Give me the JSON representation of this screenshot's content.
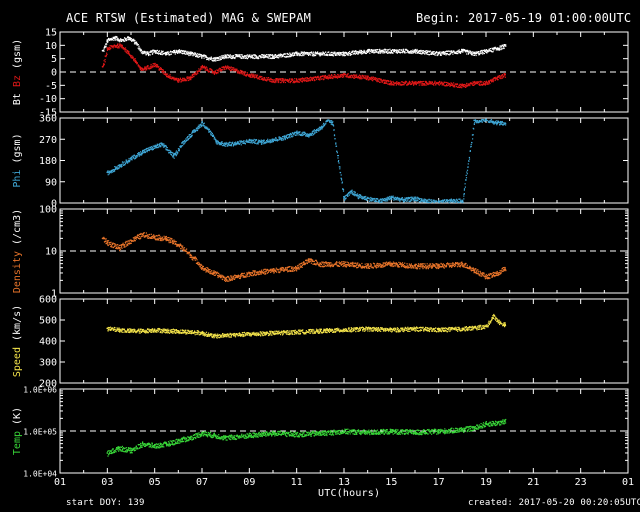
{
  "header": {
    "title": "ACE RTSW (Estimated) MAG & SWEPAM",
    "begin": "Begin: 2017-05-19 01:00:00UTC"
  },
  "footer": {
    "start_doy": "start DOY: 139",
    "created": "created: 2017-05-20 00:20:05UTC"
  },
  "colors": {
    "bt": "#ffffff",
    "bz": "#e01818",
    "phi": "#3fa7d6",
    "density": "#e8742a",
    "speed": "#f2e24a",
    "temp": "#39d739",
    "axis": "#ffffff",
    "background": "#000000"
  },
  "chart_data": [
    {
      "type": "scatter",
      "ylabel_parts": [
        {
          "text": "Bt",
          "color": "#ffffff"
        },
        {
          "text": " ",
          "color": "#ffffff"
        },
        {
          "text": "Bz",
          "color": "#e01818"
        },
        {
          "text": " (gsm)",
          "color": "#ffffff"
        }
      ],
      "yticks": [
        "15",
        "10",
        "5",
        "0",
        "-5",
        "-10",
        "-15"
      ],
      "ylim": [
        -15,
        15
      ],
      "dashed_ref": 0,
      "series": [
        {
          "name": "Bt",
          "color": "#ffffff",
          "x": [
            2.8,
            3.0,
            3.3,
            3.6,
            3.9,
            4.2,
            4.4,
            4.7,
            5.0,
            5.5,
            6.0,
            6.5,
            7.0,
            7.5,
            8.0,
            9.0,
            10.0,
            11.0,
            12.0,
            13.0,
            14.0,
            15.0,
            16.0,
            17.0,
            18.0,
            18.5,
            19.0,
            19.5,
            19.8
          ],
          "y": [
            8,
            12,
            13,
            12,
            13,
            11,
            8,
            7,
            8,
            7,
            8,
            7,
            6,
            5,
            6,
            6,
            6,
            7,
            7,
            7,
            8,
            8,
            8,
            7,
            8,
            7,
            8,
            9,
            10
          ]
        },
        {
          "name": "Bz",
          "color": "#e01818",
          "x": [
            2.8,
            3.0,
            3.3,
            3.6,
            3.9,
            4.2,
            4.4,
            4.7,
            5.0,
            5.5,
            6.0,
            6.5,
            7.0,
            7.5,
            8.0,
            9.0,
            10.0,
            11.0,
            12.0,
            13.0,
            14.0,
            15.0,
            16.0,
            17.0,
            18.0,
            18.5,
            19.0,
            19.5,
            19.8
          ],
          "y": [
            2,
            9,
            10,
            10,
            7,
            4,
            1,
            2,
            3,
            -1,
            -3,
            -2,
            2,
            0,
            2,
            -1,
            -3,
            -3,
            -2,
            -1,
            -2,
            -4,
            -4,
            -4,
            -5,
            -4,
            -4,
            -2,
            -1
          ]
        }
      ]
    },
    {
      "type": "scatter",
      "ylabel_parts": [
        {
          "text": "Phi",
          "color": "#3fa7d6"
        },
        {
          "text": " (gsm)",
          "color": "#ffffff"
        }
      ],
      "yticks": [
        "360",
        "270",
        "180",
        "90",
        "0"
      ],
      "ylim": [
        0,
        360
      ],
      "series": [
        {
          "name": "Phi",
          "color": "#3fa7d6",
          "x": [
            3.0,
            3.5,
            4.0,
            4.5,
            5.0,
            5.3,
            5.8,
            6.2,
            6.6,
            7.0,
            7.2,
            7.6,
            8.0,
            8.5,
            9.0,
            9.5,
            10.0,
            10.5,
            11.0,
            11.5,
            12.0,
            12.3,
            12.5,
            13.0,
            13.3,
            13.6,
            14.0,
            14.5,
            15.0,
            15.5,
            16.0,
            16.5,
            17.0,
            17.5,
            18.0,
            18.5,
            19.0,
            19.3,
            19.6,
            19.8
          ],
          "y": [
            130,
            160,
            190,
            220,
            240,
            250,
            200,
            260,
            300,
            340,
            320,
            260,
            250,
            255,
            265,
            260,
            270,
            280,
            300,
            290,
            320,
            350,
            340,
            20,
            50,
            30,
            20,
            10,
            25,
            15,
            20,
            10,
            5,
            10,
            10,
            350,
            355,
            345,
            340,
            338
          ]
        }
      ]
    },
    {
      "type": "scatter",
      "ylabel_parts": [
        {
          "text": "Density",
          "color": "#e8742a"
        },
        {
          "text": " (/cm3)",
          "color": "#ffffff"
        }
      ],
      "yscale": "log",
      "yticks": [
        "100",
        "10",
        "1"
      ],
      "ylim": [
        1,
        100
      ],
      "dashed_ref": 10,
      "series": [
        {
          "name": "Density",
          "color": "#e8742a",
          "x": [
            2.8,
            3.0,
            3.5,
            4.0,
            4.5,
            5.0,
            5.5,
            6.0,
            6.5,
            7.0,
            7.5,
            8.0,
            8.5,
            9.0,
            10.0,
            11.0,
            11.5,
            12.0,
            13.0,
            14.0,
            15.0,
            16.0,
            17.0,
            18.0,
            18.5,
            19.0,
            19.5,
            19.8
          ],
          "y": [
            20,
            16,
            12,
            18,
            25,
            22,
            20,
            14,
            8,
            4,
            3,
            2.2,
            2.5,
            3,
            3.5,
            4,
            6,
            5,
            5,
            4.5,
            5,
            4.5,
            4.5,
            5,
            3.5,
            2.5,
            3,
            4
          ]
        }
      ]
    },
    {
      "type": "scatter",
      "ylabel_parts": [
        {
          "text": "Speed",
          "color": "#f2e24a"
        },
        {
          "text": " (km/s)",
          "color": "#ffffff"
        }
      ],
      "yticks": [
        "600",
        "500",
        "400",
        "300",
        "200"
      ],
      "ylim": [
        200,
        600
      ],
      "series": [
        {
          "name": "Speed",
          "color": "#f2e24a",
          "x": [
            3.0,
            3.5,
            4.0,
            4.5,
            5.0,
            5.5,
            6.0,
            6.5,
            7.0,
            7.5,
            8.0,
            9.0,
            10.0,
            11.0,
            12.0,
            13.0,
            14.0,
            15.0,
            16.0,
            17.0,
            18.0,
            18.5,
            19.0,
            19.3,
            19.6,
            19.8
          ],
          "y": [
            460,
            455,
            450,
            450,
            455,
            450,
            448,
            445,
            440,
            425,
            430,
            435,
            440,
            445,
            450,
            455,
            460,
            455,
            460,
            455,
            460,
            465,
            470,
            520,
            485,
            480
          ]
        }
      ]
    },
    {
      "type": "scatter",
      "ylabel_parts": [
        {
          "text": "Temp",
          "color": "#39d739"
        },
        {
          "text": " (K)",
          "color": "#ffffff"
        }
      ],
      "yscale": "log",
      "yticks": [
        "1.0E+06",
        "1.0E+05",
        "1.0E+04"
      ],
      "ylim": [
        10000,
        1000000
      ],
      "dashed_ref": 100000,
      "series": [
        {
          "name": "Temp",
          "color": "#39d739",
          "x": [
            3.0,
            3.5,
            4.0,
            4.5,
            5.0,
            5.5,
            6.0,
            6.5,
            7.0,
            7.5,
            8.0,
            9.0,
            10.0,
            11.0,
            12.0,
            13.0,
            14.0,
            15.0,
            16.0,
            17.0,
            18.0,
            18.5,
            19.0,
            19.5,
            19.8
          ],
          "y": [
            30000,
            40000,
            35000,
            50000,
            45000,
            50000,
            60000,
            70000,
            90000,
            80000,
            70000,
            80000,
            90000,
            85000,
            90000,
            100000,
            95000,
            100000,
            95000,
            100000,
            110000,
            120000,
            150000,
            160000,
            170000
          ]
        }
      ]
    }
  ],
  "xaxis": {
    "label": "UTC(hours)",
    "ticks": [
      "01",
      "03",
      "05",
      "07",
      "09",
      "11",
      "13",
      "15",
      "17",
      "19",
      "21",
      "23",
      "01"
    ],
    "range": [
      1,
      25
    ]
  }
}
